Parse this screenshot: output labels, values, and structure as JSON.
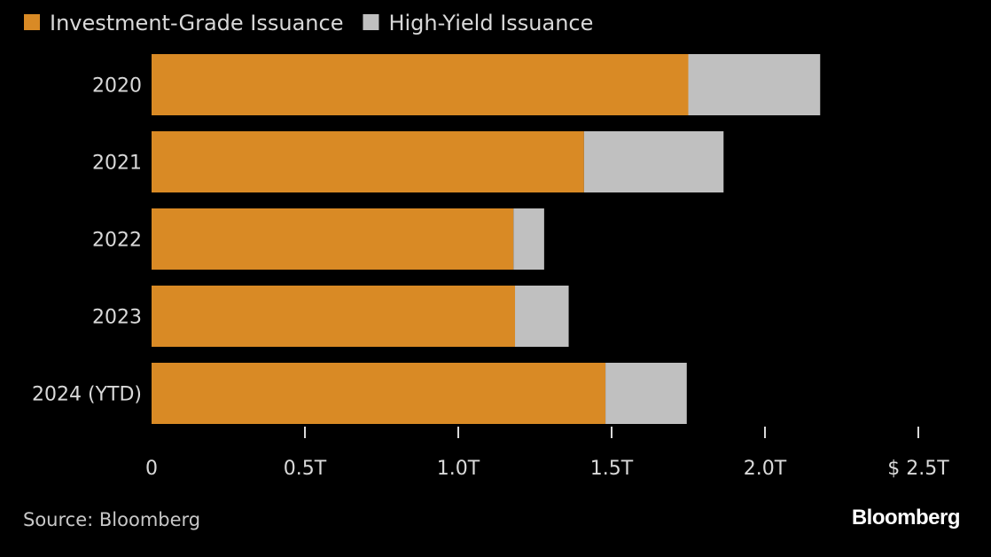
{
  "chart_data": {
    "type": "bar",
    "orientation": "horizontal",
    "stacked": true,
    "categories": [
      "2020",
      "2021",
      "2022",
      "2023",
      "2024 (YTD)"
    ],
    "series": [
      {
        "name": "Investment-Grade Issuance",
        "color": "#d98a25",
        "values": [
          1.75,
          1.41,
          1.18,
          1.185,
          1.48
        ]
      },
      {
        "name": "High-Yield Issuance",
        "color": "#c0c0c0",
        "values": [
          0.43,
          0.455,
          0.1,
          0.175,
          0.265
        ]
      }
    ],
    "xlim": [
      0,
      2.5
    ],
    "x_ticks": [
      {
        "value": 0,
        "label": "0"
      },
      {
        "value": 0.5,
        "label": "0.5T"
      },
      {
        "value": 1.0,
        "label": "1.0T"
      },
      {
        "value": 1.5,
        "label": "1.5T"
      },
      {
        "value": 2.0,
        "label": "2.0T"
      },
      {
        "value": 2.5,
        "label": "$ 2.5T"
      }
    ],
    "legend_position": "top-left",
    "grid": false
  },
  "footer": {
    "source": "Source: Bloomberg",
    "brand": "Bloomberg"
  }
}
